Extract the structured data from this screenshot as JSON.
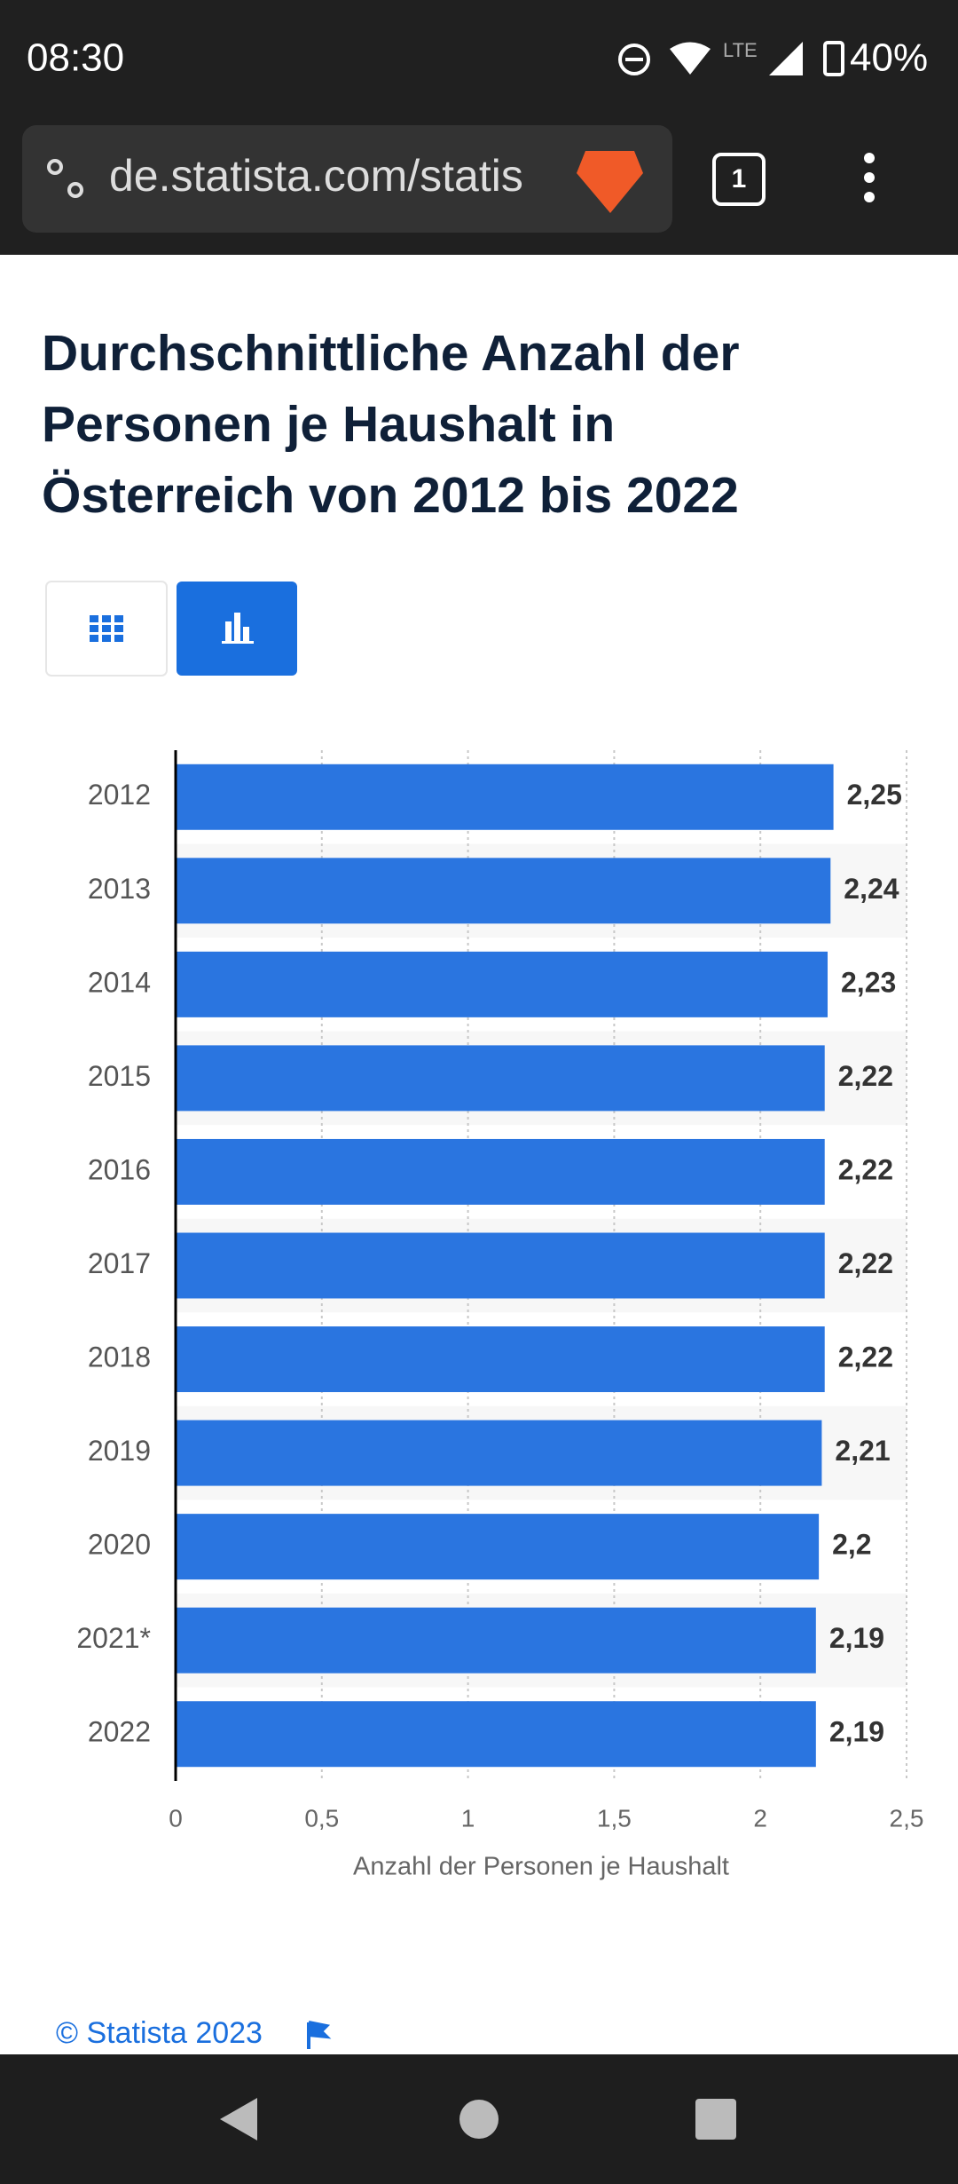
{
  "status_bar": {
    "time": "08:30",
    "network": "LTE",
    "battery": "40%"
  },
  "url_bar": {
    "url": "de.statista.com/statis",
    "tabs": "1"
  },
  "chart_data": {
    "type": "hbar",
    "title": [
      "Durchschnittliche Anzahl der",
      "Personen je Haushalt in",
      "Österreich von 2012 bis 2022"
    ],
    "categories": [
      "2012",
      "2013",
      "2014",
      "2015",
      "2016",
      "2017",
      "2018",
      "2019",
      "2020",
      "2021*",
      "2022"
    ],
    "values": [
      2.25,
      2.24,
      2.23,
      2.22,
      2.22,
      2.22,
      2.22,
      2.21,
      2.2,
      2.19,
      2.19
    ],
    "value_labels": [
      "2,25",
      "2,24",
      "2,23",
      "2,22",
      "2,22",
      "2,22",
      "2,22",
      "2,21",
      "2,2",
      "2,19",
      "2,19"
    ],
    "color": "#2a75e0",
    "xlim": [
      0,
      2.5
    ],
    "xticks": [
      0,
      {
        "value": 0.5,
        "label": "0,5"
      },
      1,
      {
        "value": 1.5,
        "label": "1,5"
      },
      2,
      {
        "value": 2.5,
        "label": "2,5"
      }
    ],
    "x_label": "Anzahl der Personen je Haushalt",
    "grid": true
  },
  "footer": {
    "copyright": "© Statista 2023"
  }
}
